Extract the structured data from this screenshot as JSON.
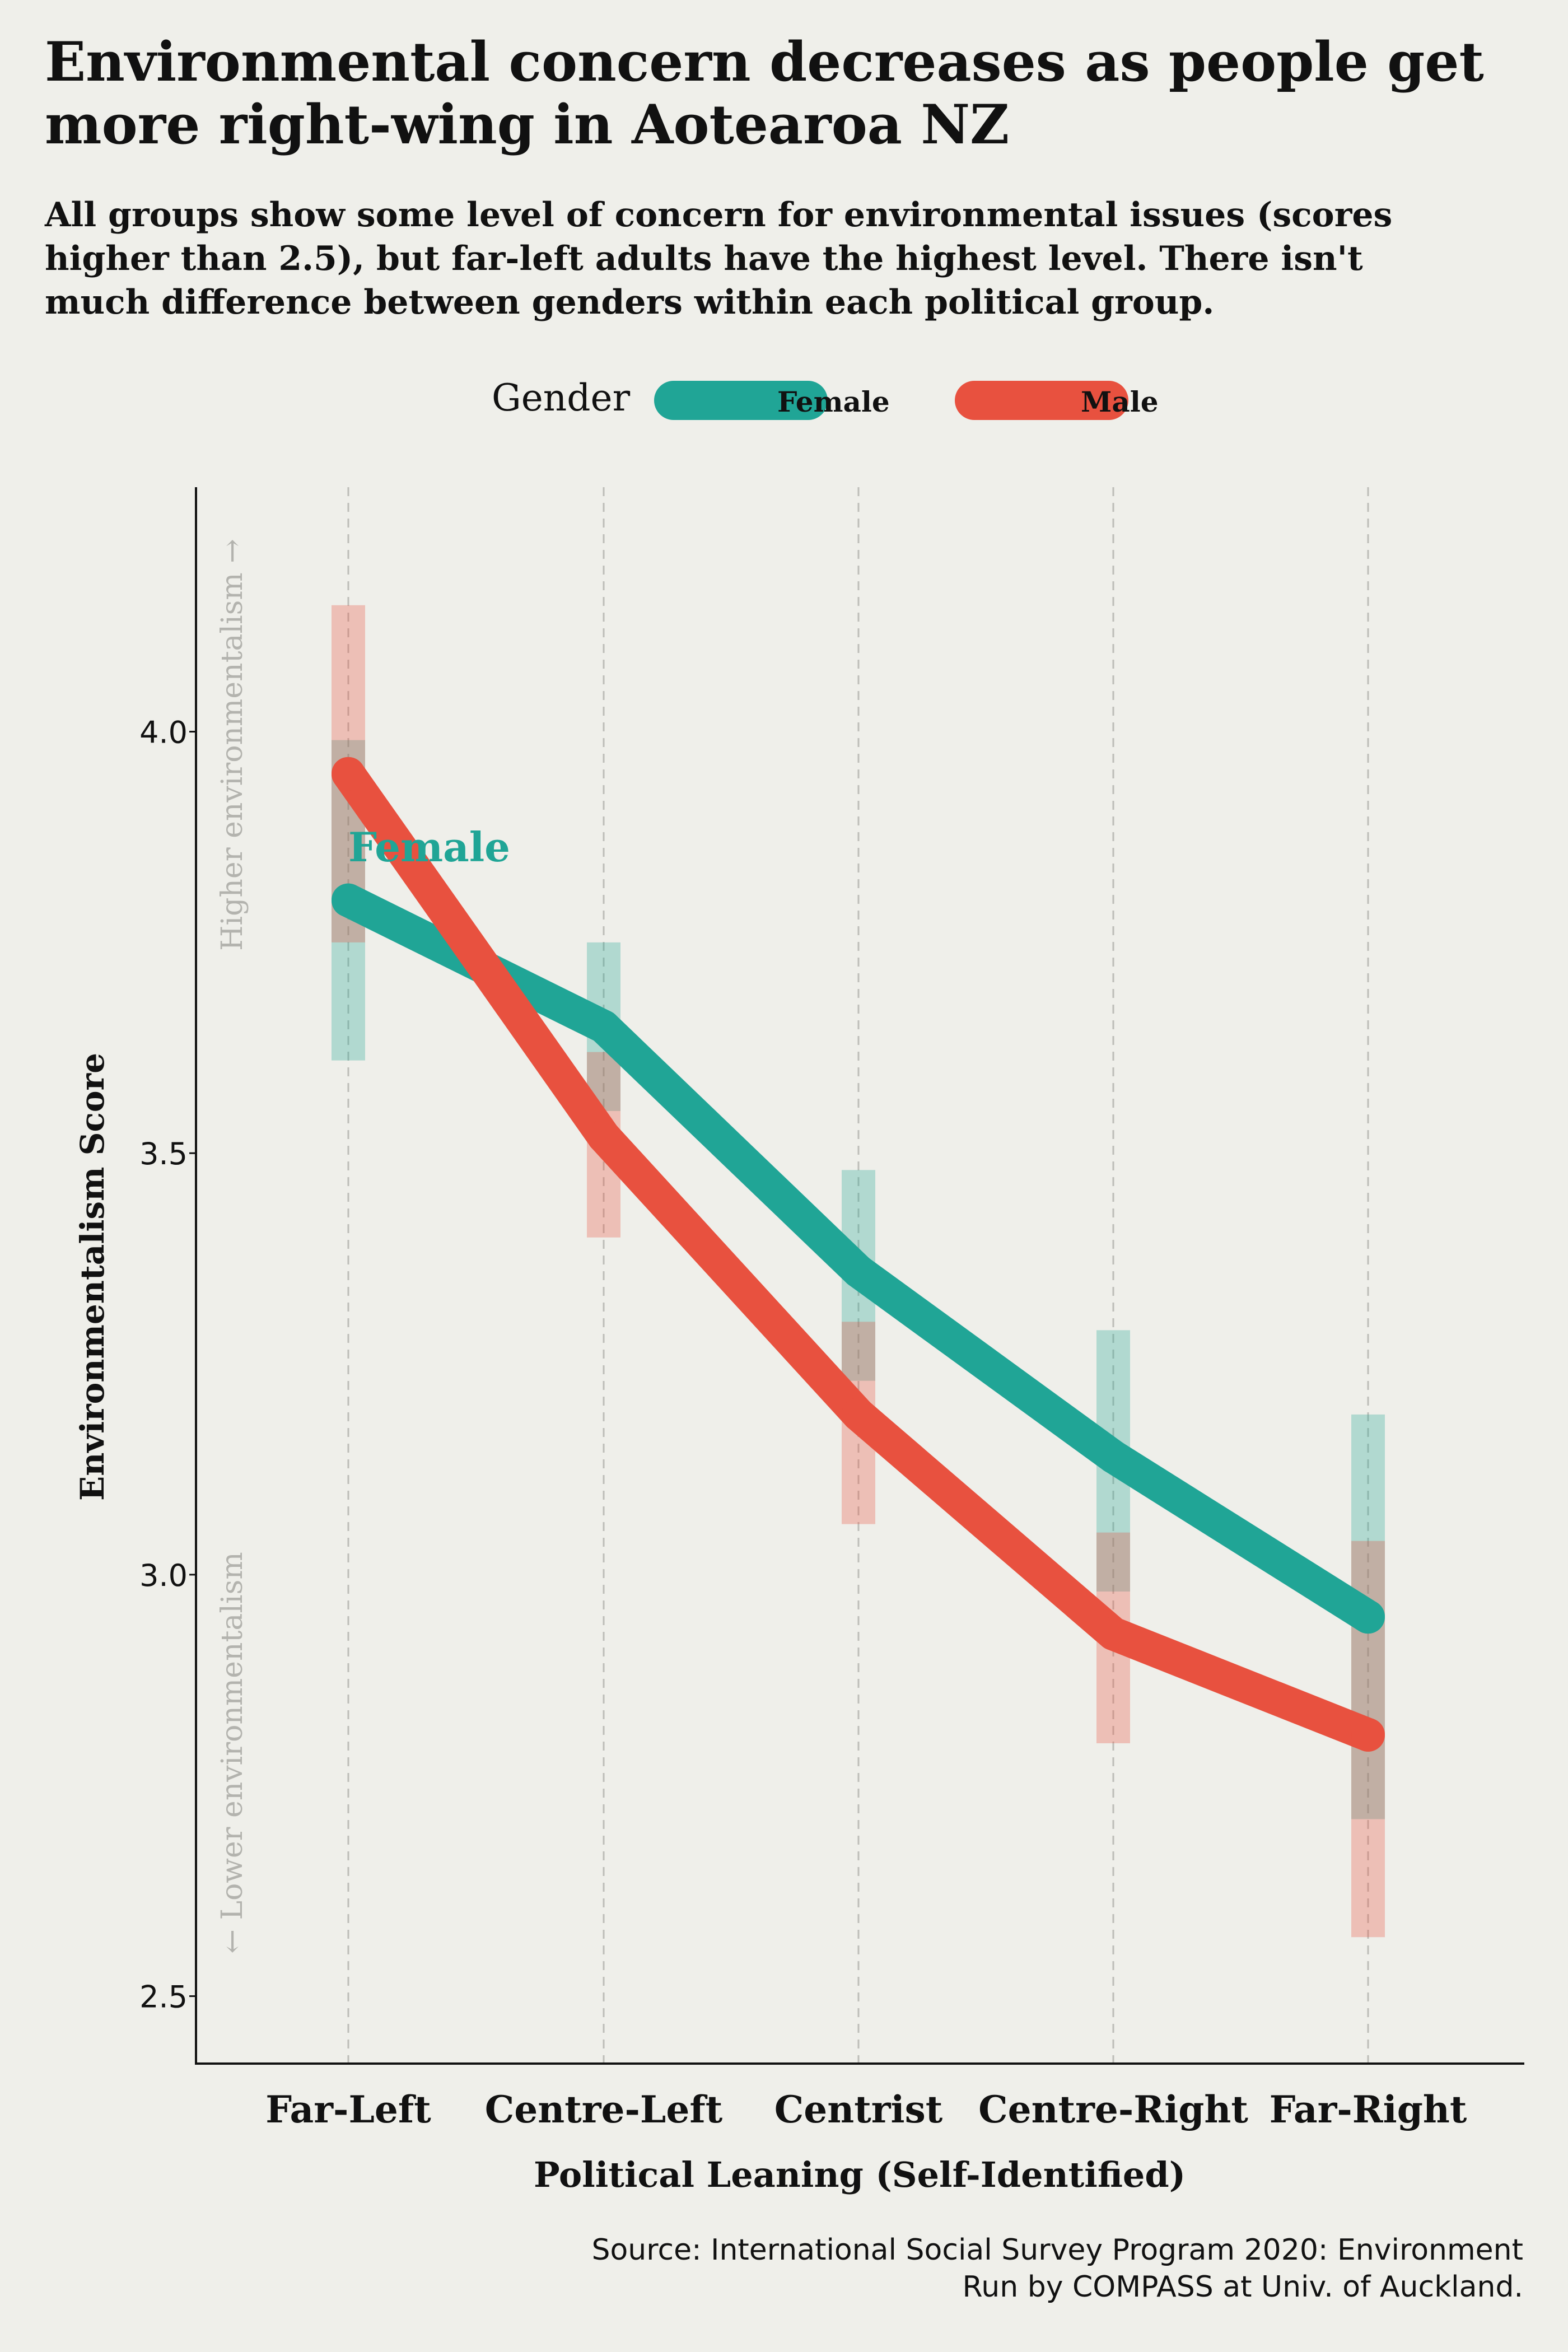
{
  "title": "Environmental concern decreases as people get more right-wing in Aotearoa NZ",
  "subtitle": "All groups show some level of concern for environmental issues (scores higher than 2.5), but far-left adults have the highest level. There isn't much difference between genders within each political group.",
  "legend": {
    "title": "Gender",
    "items": [
      {
        "label": "Female",
        "color": "#20a596"
      },
      {
        "label": "Male",
        "color": "#e8513f"
      }
    ]
  },
  "annotations": {
    "higher": "Higher environmentalism →",
    "lower": "← Lower environmentalism",
    "series_label": "Female"
  },
  "source": {
    "line1": "Source: International Social Survey Program 2020: Environment",
    "line2": "Run by COMPASS at Univ. of Auckland."
  },
  "chart_data": {
    "type": "line",
    "xlabel": "Political Leaning (Self-Identified)",
    "ylabel": "Environmentalism Score",
    "categories": [
      "Far-Left",
      "Centre-Left",
      "Centrist",
      "Centre-Right",
      "Far-Right"
    ],
    "yticks": [
      2.5,
      3.0,
      3.5,
      4.0
    ],
    "ytick_labels": [
      "2.5",
      "3.0",
      "3.5",
      "4.0"
    ],
    "ylim": [
      2.42,
      4.29
    ],
    "grid": "vertical dashed lines at categories",
    "series": [
      {
        "name": "Female",
        "color": "#20a596",
        "values": [
          3.8,
          3.65,
          3.36,
          3.14,
          2.95
        ],
        "ci_low": [
          3.61,
          3.55,
          3.23,
          2.98,
          2.71
        ],
        "ci_high": [
          3.99,
          3.75,
          3.48,
          3.29,
          3.19
        ]
      },
      {
        "name": "Male",
        "color": "#e8513f",
        "values": [
          3.95,
          3.52,
          3.19,
          2.93,
          2.81
        ],
        "ci_low": [
          3.75,
          3.4,
          3.06,
          2.8,
          2.57
        ],
        "ci_high": [
          4.15,
          3.62,
          3.3,
          3.05,
          3.04
        ]
      }
    ]
  }
}
